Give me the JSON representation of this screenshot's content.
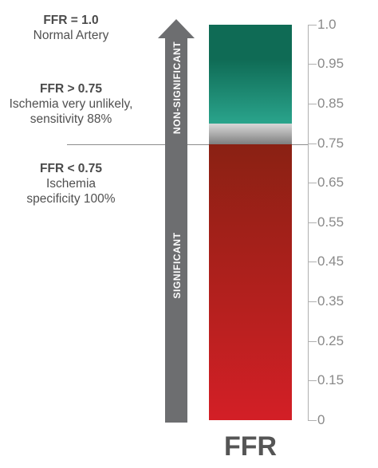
{
  "labels": {
    "normal": {
      "heading": "FFR = 1.0",
      "line1": "Normal Artery"
    },
    "non_significant": {
      "heading": "FFR > 0.75",
      "line1": "Ischemia very unlikely,",
      "line2": "sensitivity 88%"
    },
    "significant": {
      "heading": "FFR < 0.75",
      "line1": "Ischemia",
      "line2": "specificity 100%"
    }
  },
  "arrow": {
    "upper_label": "NON-SIGNIFICANT",
    "lower_label": "SIGNIFICANT",
    "color": "#6d6e70"
  },
  "scale": {
    "ticks": [
      "1.0",
      "0.95",
      "0.85",
      "0.75",
      "0.65",
      "0.55",
      "0.45",
      "0.35",
      "0.25",
      "0.15",
      "0"
    ]
  },
  "bar": {
    "label": "FFR",
    "threshold": 0.75,
    "gray_zone": [
      0.75,
      0.8
    ],
    "colors": {
      "green_top": "#0f6b55",
      "green_bottom": "#2aa48c",
      "gray": "#a8a8a8",
      "red_top": "#8a2113",
      "red_bottom": "#d31f26"
    }
  }
}
